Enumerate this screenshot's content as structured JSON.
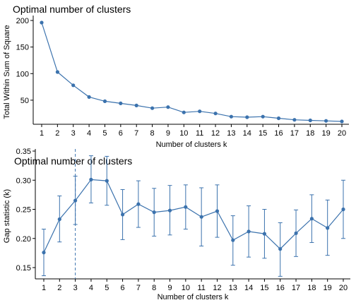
{
  "chart_data": [
    {
      "type": "line",
      "title": "Optimal number of clusters",
      "xlabel": "Number of clusters k",
      "ylabel": "Total Within Sum of Square",
      "x": [
        1,
        2,
        3,
        4,
        5,
        6,
        7,
        8,
        9,
        10,
        11,
        12,
        13,
        14,
        15,
        16,
        17,
        18,
        19,
        20
      ],
      "y": [
        196,
        103,
        78,
        56,
        48,
        44,
        40,
        35,
        37,
        27,
        29,
        25,
        19,
        18,
        19,
        16,
        13,
        12,
        11,
        10
      ],
      "xlim": [
        1,
        20
      ],
      "ylim": [
        10,
        200
      ],
      "yticks": [
        50,
        100,
        150,
        200
      ],
      "grid": false,
      "color": "#3b72ad"
    },
    {
      "type": "line",
      "title": "Optimal number of clusters",
      "xlabel": "Number of clusters k",
      "ylabel": "Gap statistic (k)",
      "x": [
        1,
        2,
        3,
        4,
        5,
        6,
        7,
        8,
        9,
        10,
        11,
        12,
        13,
        14,
        15,
        16,
        17,
        18,
        19,
        20
      ],
      "y": [
        0.176,
        0.233,
        0.265,
        0.301,
        0.299,
        0.241,
        0.259,
        0.245,
        0.248,
        0.254,
        0.237,
        0.247,
        0.197,
        0.212,
        0.208,
        0.182,
        0.209,
        0.234,
        0.218,
        0.25
      ],
      "ymin": [
        0.136,
        0.194,
        0.224,
        0.261,
        0.257,
        0.198,
        0.219,
        0.204,
        0.206,
        0.216,
        0.187,
        0.202,
        0.154,
        0.168,
        0.166,
        0.135,
        0.169,
        0.193,
        0.171,
        0.2
      ],
      "ymax": [
        0.216,
        0.273,
        0.307,
        0.342,
        0.341,
        0.284,
        0.299,
        0.286,
        0.291,
        0.292,
        0.287,
        0.292,
        0.239,
        0.256,
        0.25,
        0.227,
        0.249,
        0.275,
        0.266,
        0.3
      ],
      "optimal_k": 3,
      "xlim": [
        1,
        20
      ],
      "ylim": [
        0.125,
        0.35
      ],
      "yticks": [
        0.15,
        0.2,
        0.25,
        0.3,
        0.35
      ],
      "ytick_labels": [
        "0.15",
        "0.20",
        "0.25",
        "0.30",
        "0.35"
      ],
      "grid": false,
      "color": "#3b72ad"
    }
  ]
}
